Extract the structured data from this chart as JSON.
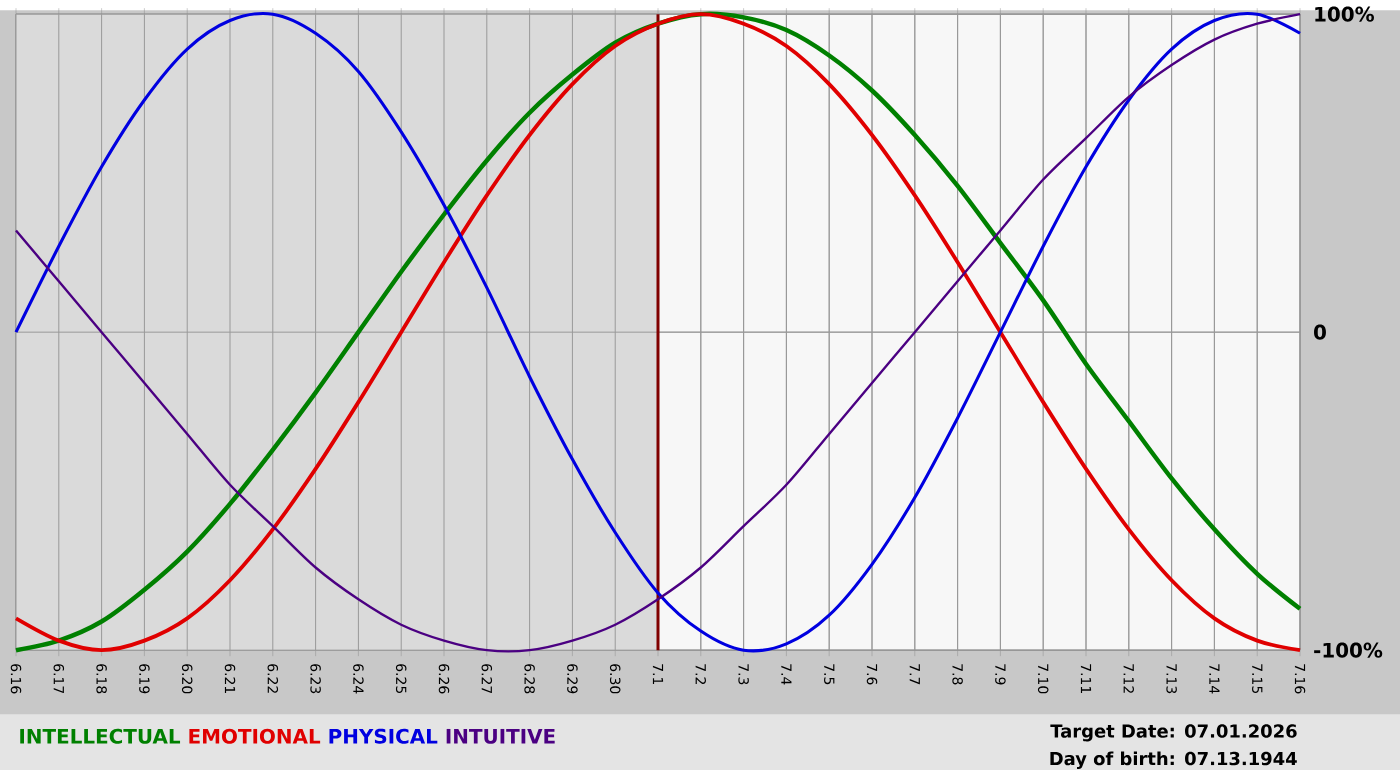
{
  "chart_data": {
    "type": "line",
    "categories": [
      "6.16",
      "6.17",
      "6.18",
      "6.19",
      "6.20",
      "6.21",
      "6.22",
      "6.23",
      "6.24",
      "6.25",
      "6.26",
      "6.27",
      "6.28",
      "6.29",
      "6.30",
      "7.1",
      "7.2",
      "7.3",
      "7.4",
      "7.5",
      "7.6",
      "7.7",
      "7.8",
      "7.9",
      "7.10",
      "7.11",
      "7.12",
      "7.13",
      "7.14",
      "7.15",
      "7.16"
    ],
    "series": [
      {
        "name": "INTELLECTUAL",
        "color": "#008000",
        "values": [
          -100,
          -97,
          -91,
          -81,
          -69,
          -54,
          -37,
          -19,
          0,
          19,
          37,
          54,
          69,
          81,
          91,
          97,
          100,
          99,
          95,
          87,
          76,
          62,
          46,
          28,
          10,
          -10,
          -28,
          -46,
          -62,
          -76,
          -87
        ]
      },
      {
        "name": "EMOTIONAL",
        "color": "#e00000",
        "values": [
          -90,
          -97,
          -100,
          -97,
          -90,
          -78,
          -62,
          -43,
          -22,
          0,
          22,
          43,
          62,
          78,
          90,
          97,
          100,
          97,
          90,
          78,
          62,
          43,
          22,
          0,
          -22,
          -43,
          -62,
          -78,
          -90,
          -97,
          -100
        ]
      },
      {
        "name": "PHYSICAL",
        "color": "#0000e0",
        "values": [
          0,
          27,
          52,
          73,
          89,
          98,
          100,
          94,
          82,
          63,
          40,
          14,
          -14,
          -40,
          -63,
          -82,
          -94,
          -100,
          -98,
          -89,
          -73,
          -52,
          -27,
          0,
          27,
          52,
          73,
          89,
          98,
          100,
          94
        ]
      },
      {
        "name": "INTUITIVE",
        "color": "#4b0082",
        "values": [
          32,
          16,
          0,
          -16,
          -32,
          -48,
          -61,
          -74,
          -84,
          -92,
          -97,
          -100,
          -100,
          -97,
          -92,
          -84,
          -74,
          -61,
          -48,
          -32,
          -16,
          0,
          16,
          32,
          48,
          61,
          74,
          84,
          92,
          97,
          100
        ]
      }
    ],
    "ylim": [
      -100,
      100
    ],
    "yticks": [
      {
        "value": 100,
        "label": "100%"
      },
      0,
      {
        "value": -100,
        "label": "-100%"
      }
    ],
    "grid": true,
    "legend": "bottom",
    "ref_lines": [
      {
        "axis": "x",
        "value": "7.1",
        "color": "#800000"
      }
    ],
    "bands": [
      {
        "axis": "x",
        "from": "6.16",
        "to": "7.1",
        "color": "#dadada"
      }
    ],
    "annotations": [
      "Target Date: 07.01.2026",
      "Day of birth: 07.13.1944"
    ]
  }
}
